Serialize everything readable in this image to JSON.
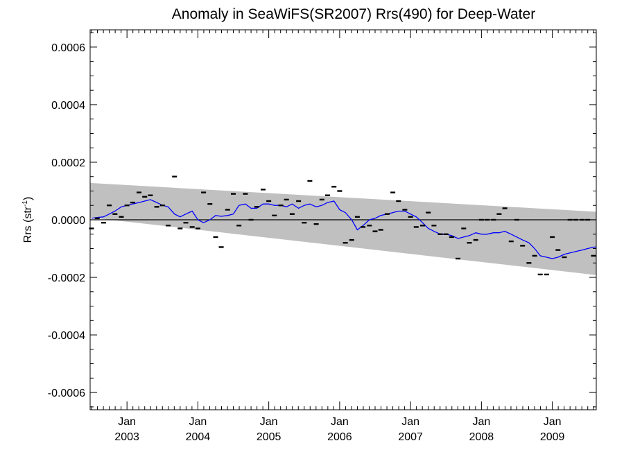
{
  "chart_data": {
    "type": "line",
    "title": "Anomaly in SeaWiFS(SR2007) Rrs(490) for Deep-Water",
    "xlabel": "",
    "ylabel": "Rrs (str",
    "ylabel_superscript": "-1",
    "ylabel_suffix": ")",
    "xlim": [
      2002.48,
      2009.62
    ],
    "ylim": [
      -0.00066,
      0.00066
    ],
    "x_ticks": [
      {
        "x": 2003.0,
        "top": "Jan",
        "bottom": "2003"
      },
      {
        "x": 2004.0,
        "top": "Jan",
        "bottom": "2004"
      },
      {
        "x": 2005.0,
        "top": "Jan",
        "bottom": "2005"
      },
      {
        "x": 2006.0,
        "top": "Jan",
        "bottom": "2006"
      },
      {
        "x": 2007.0,
        "top": "Jan",
        "bottom": "2007"
      },
      {
        "x": 2008.0,
        "top": "Jan",
        "bottom": "2008"
      },
      {
        "x": 2009.0,
        "top": "Jan",
        "bottom": "2009"
      }
    ],
    "y_ticks": [
      {
        "value": 0.0006,
        "label": "0.0006"
      },
      {
        "value": 0.0004,
        "label": "0.0004"
      },
      {
        "value": 0.0002,
        "label": "0.0002"
      },
      {
        "value": 0.0,
        "label": "0.0000"
      },
      {
        "value": -0.0002,
        "label": "-0.0002"
      },
      {
        "value": -0.0004,
        "label": "-0.0004"
      },
      {
        "value": -0.0006,
        "label": "-0.0006"
      }
    ],
    "band": {
      "color": "#c0c0c0",
      "upper": [
        [
          2002.48,
          0.000128
        ],
        [
          2009.62,
          2.8e-05
        ]
      ],
      "lower": [
        [
          2002.48,
          8e-06
        ],
        [
          2009.62,
          -0.000192
        ]
      ]
    },
    "zero_line": 0.0,
    "series": [
      {
        "style": "markers",
        "color": "#000000",
        "x": [
          2002.5,
          2002.58,
          2002.67,
          2002.75,
          2002.83,
          2002.92,
          2003.0,
          2003.08,
          2003.17,
          2003.25,
          2003.33,
          2003.42,
          2003.5,
          2003.58,
          2003.67,
          2003.75,
          2003.83,
          2003.92,
          2004.0,
          2004.08,
          2004.17,
          2004.25,
          2004.33,
          2004.42,
          2004.5,
          2004.58,
          2004.67,
          2004.75,
          2004.83,
          2004.92,
          2005.0,
          2005.08,
          2005.17,
          2005.25,
          2005.33,
          2005.42,
          2005.5,
          2005.58,
          2005.67,
          2005.75,
          2005.83,
          2005.92,
          2006.0,
          2006.08,
          2006.17,
          2006.25,
          2006.33,
          2006.42,
          2006.5,
          2006.58,
          2006.67,
          2006.75,
          2006.83,
          2006.92,
          2007.0,
          2007.08,
          2007.17,
          2007.25,
          2007.33,
          2007.42,
          2007.5,
          2007.58,
          2007.67,
          2007.75,
          2007.83,
          2007.92,
          2008.0,
          2008.08,
          2008.17,
          2008.25,
          2008.33,
          2008.42,
          2008.5,
          2008.58,
          2008.67,
          2008.75,
          2008.83,
          2008.92,
          2009.0,
          2009.08,
          2009.17,
          2009.25,
          2009.33,
          2009.42,
          2009.5,
          2009.58
        ],
        "y": [
          -3e-05,
          5e-06,
          -1e-05,
          5e-05,
          2e-05,
          1e-05,
          5e-05,
          6e-05,
          9.5e-05,
          8e-05,
          8.5e-05,
          4.5e-05,
          5e-05,
          -2e-05,
          0.00015,
          -3e-05,
          -1e-05,
          -2.5e-05,
          -3e-05,
          9.5e-05,
          5.5e-05,
          -6e-05,
          -9.5e-05,
          3.5e-05,
          9e-05,
          -2e-05,
          9e-05,
          0.0,
          4.5e-05,
          0.000105,
          6.5e-05,
          1.5e-05,
          5e-05,
          7e-05,
          2e-05,
          6.5e-05,
          -1e-05,
          0.000135,
          -1.5e-05,
          7e-05,
          8.5e-05,
          0.000115,
          0.0001,
          -8e-05,
          -7e-05,
          1e-05,
          -2.5e-05,
          -2e-05,
          -4e-05,
          -3.5e-05,
          2e-05,
          9.5e-05,
          6.5e-05,
          3.5e-05,
          1e-05,
          -2.5e-05,
          -2e-05,
          2.5e-05,
          -2e-05,
          -5e-05,
          -5e-05,
          -6e-05,
          -0.000135,
          -3e-05,
          -8e-05,
          -7e-05,
          0.0,
          0.0,
          0.0,
          2e-05,
          4e-05,
          -7.5e-05,
          0.0,
          -9e-05,
          -0.00015,
          -0.000125,
          -0.00019,
          -0.00019,
          -6e-05,
          -0.000105,
          -0.00013,
          0.0,
          0.0,
          0.0,
          0.0,
          -0.000125
        ]
      },
      {
        "style": "line",
        "color": "#0000ff",
        "x": [
          2002.5,
          2002.58,
          2002.67,
          2002.75,
          2002.83,
          2002.92,
          2003.0,
          2003.08,
          2003.17,
          2003.25,
          2003.33,
          2003.42,
          2003.5,
          2003.58,
          2003.67,
          2003.75,
          2003.83,
          2003.92,
          2004.0,
          2004.08,
          2004.17,
          2004.25,
          2004.33,
          2004.42,
          2004.5,
          2004.58,
          2004.67,
          2004.75,
          2004.83,
          2004.92,
          2005.0,
          2005.08,
          2005.17,
          2005.25,
          2005.33,
          2005.42,
          2005.5,
          2005.58,
          2005.67,
          2005.75,
          2005.83,
          2005.92,
          2006.0,
          2006.08,
          2006.17,
          2006.25,
          2006.33,
          2006.42,
          2006.5,
          2006.58,
          2006.67,
          2006.75,
          2006.83,
          2006.92,
          2007.0,
          2007.08,
          2007.17,
          2007.25,
          2007.33,
          2007.42,
          2007.5,
          2007.58,
          2007.67,
          2007.75,
          2007.83,
          2007.92,
          2008.0,
          2008.08,
          2008.17,
          2008.25,
          2008.33,
          2008.42,
          2008.5,
          2008.58,
          2008.67,
          2008.75,
          2008.83,
          2008.92,
          2009.0,
          2009.08,
          2009.17,
          2009.25,
          2009.33,
          2009.42,
          2009.5,
          2009.58,
          2009.62
        ],
        "y": [
          5e-06,
          8e-06,
          1e-05,
          2e-05,
          3e-05,
          4.5e-05,
          5e-05,
          5.5e-05,
          6e-05,
          6.5e-05,
          7e-05,
          6e-05,
          5e-05,
          4.5e-05,
          2e-05,
          1e-05,
          2e-05,
          3e-05,
          0.0,
          -1e-05,
          0.0,
          1.5e-05,
          1.2e-05,
          1.5e-05,
          2e-05,
          5e-05,
          5.5e-05,
          4e-05,
          4e-05,
          5.5e-05,
          5.5e-05,
          5e-05,
          5e-05,
          4.5e-05,
          5.5e-05,
          4e-05,
          5e-05,
          5.5e-05,
          4.5e-05,
          5e-05,
          6e-05,
          6.5e-05,
          3.5e-05,
          2.5e-05,
          0.0,
          -3.5e-05,
          -2e-05,
          0.0,
          5e-06,
          1.5e-05,
          2e-05,
          2.5e-05,
          3e-05,
          3e-05,
          2e-05,
          1e-05,
          -1e-05,
          -3e-05,
          -4e-05,
          -5e-05,
          -5e-05,
          -5.5e-05,
          -6.5e-05,
          -6e-05,
          -5.5e-05,
          -4.5e-05,
          -5e-05,
          -5e-05,
          -4.5e-05,
          -4.5e-05,
          -4e-05,
          -5e-05,
          -6e-05,
          -7e-05,
          -8e-05,
          -0.0001,
          -0.000125,
          -0.00013,
          -0.000135,
          -0.00013,
          -0.00012,
          -0.000115,
          -0.00011,
          -0.000105,
          -0.0001,
          -9.5e-05,
          -9.5e-05
        ]
      }
    ]
  }
}
